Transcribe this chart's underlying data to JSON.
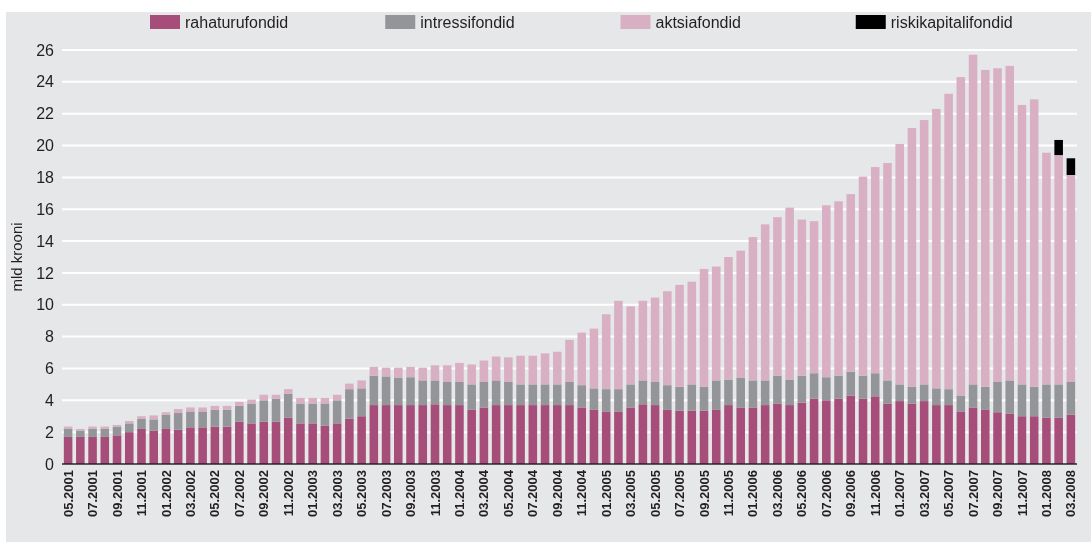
{
  "chart_data": {
    "type": "bar",
    "stacked": true,
    "ylabel": "mld krooni",
    "ylim": [
      0,
      26
    ],
    "yticks": [
      0,
      2,
      4,
      6,
      8,
      10,
      12,
      14,
      16,
      18,
      20,
      22,
      24,
      26
    ],
    "grid": "y",
    "legend": "top",
    "categories": [
      "05.2001",
      null,
      "07.2001",
      null,
      "09.2001",
      null,
      "11.2001",
      null,
      "01.2002",
      null,
      "03.2002",
      null,
      "05.2002",
      null,
      "07.2002",
      null,
      "09.2002",
      null,
      "11.2002",
      null,
      "01.2003",
      null,
      "03.2003",
      null,
      "05.2003",
      null,
      "07.2003",
      null,
      "09.2003",
      null,
      "11.2003",
      null,
      "01.2004",
      null,
      "03.2004",
      null,
      "05.2004",
      null,
      "07.2004",
      null,
      "09.2004",
      null,
      "11.2004",
      null,
      "01.2005",
      null,
      "03.2005",
      null,
      "05.2005",
      null,
      "07.2005",
      null,
      "09.2005",
      null,
      "11.2005",
      null,
      "01.2006",
      null,
      "03.2006",
      null,
      "05.2006",
      null,
      "07.2006",
      null,
      "09.2006",
      null,
      "11.2006",
      null,
      "01.2007",
      null,
      "03.2007",
      null,
      "05.2007",
      null,
      "07.2007",
      null,
      "09.2007",
      null,
      "11.2007",
      null,
      "01.2008",
      null,
      "03.2008"
    ],
    "series": [
      {
        "name": "rahaturufondid",
        "color": "#a64d79",
        "values": [
          1.7,
          1.7,
          1.7,
          1.7,
          1.8,
          2.0,
          2.2,
          2.1,
          2.2,
          2.15,
          2.3,
          2.3,
          2.35,
          2.35,
          2.65,
          2.55,
          2.65,
          2.65,
          2.9,
          2.55,
          2.55,
          2.4,
          2.55,
          2.85,
          3.0,
          3.7,
          3.7,
          3.7,
          3.7,
          3.7,
          3.75,
          3.7,
          3.7,
          3.4,
          3.55,
          3.7,
          3.7,
          3.7,
          3.7,
          3.7,
          3.7,
          3.7,
          3.55,
          3.4,
          3.3,
          3.3,
          3.55,
          3.75,
          3.7,
          3.4,
          3.35,
          3.35,
          3.35,
          3.4,
          3.7,
          3.55,
          3.55,
          3.7,
          3.8,
          3.7,
          3.85,
          4.1,
          4.0,
          4.1,
          4.3,
          4.1,
          4.25,
          3.8,
          3.95,
          3.8,
          3.95,
          3.7,
          3.7,
          3.3,
          3.55,
          3.4,
          3.25,
          3.15,
          3.0,
          3.0,
          2.9,
          2.9,
          3.1
        ]
      },
      {
        "name": "intressifondid",
        "color": "#939598",
        "values": [
          0.5,
          0.4,
          0.5,
          0.5,
          0.55,
          0.55,
          0.65,
          0.7,
          0.9,
          1.05,
          1.0,
          1.0,
          1.05,
          1.05,
          1.0,
          1.25,
          1.35,
          1.45,
          1.5,
          1.25,
          1.25,
          1.4,
          1.45,
          1.85,
          1.75,
          1.85,
          1.8,
          1.7,
          1.75,
          1.55,
          1.5,
          1.45,
          1.45,
          1.6,
          1.6,
          1.55,
          1.45,
          1.3,
          1.3,
          1.3,
          1.3,
          1.45,
          1.4,
          1.35,
          1.4,
          1.4,
          1.45,
          1.5,
          1.45,
          1.55,
          1.5,
          1.65,
          1.5,
          1.85,
          1.6,
          1.85,
          1.7,
          1.55,
          1.75,
          1.6,
          1.7,
          1.6,
          1.45,
          1.45,
          1.5,
          1.45,
          1.45,
          1.45,
          1.05,
          1.05,
          1.05,
          1.05,
          1.0,
          1.0,
          1.45,
          1.45,
          1.9,
          2.1,
          2.0,
          1.85,
          2.1,
          2.1,
          2.05
        ]
      },
      {
        "name": "aktsiafondid",
        "color": "#d9afc4",
        "values": [
          0.15,
          0.1,
          0.15,
          0.15,
          0.1,
          0.15,
          0.15,
          0.25,
          0.15,
          0.25,
          0.25,
          0.25,
          0.25,
          0.25,
          0.25,
          0.25,
          0.35,
          0.25,
          0.3,
          0.35,
          0.35,
          0.35,
          0.35,
          0.35,
          0.5,
          0.55,
          0.55,
          0.65,
          0.65,
          0.8,
          0.95,
          1.05,
          1.2,
          1.25,
          1.35,
          1.5,
          1.55,
          1.8,
          1.8,
          1.95,
          2.05,
          2.65,
          3.3,
          3.75,
          4.7,
          5.55,
          4.9,
          5.0,
          5.3,
          5.9,
          6.4,
          6.45,
          7.4,
          7.15,
          7.7,
          8.0,
          9.0,
          9.8,
          9.95,
          10.8,
          9.8,
          9.55,
          10.8,
          10.95,
          11.15,
          12.5,
          12.95,
          13.65,
          15.1,
          16.25,
          16.6,
          17.55,
          18.55,
          20.0,
          20.7,
          19.9,
          19.7,
          19.75,
          17.55,
          18.05,
          14.55,
          14.4,
          13.0
        ]
      },
      {
        "name": "riskikapitalifondid",
        "color": "#000000",
        "values": [
          null,
          null,
          null,
          null,
          null,
          null,
          null,
          null,
          null,
          null,
          null,
          null,
          null,
          null,
          null,
          null,
          null,
          null,
          null,
          null,
          null,
          null,
          null,
          null,
          null,
          null,
          null,
          null,
          null,
          null,
          null,
          null,
          null,
          null,
          null,
          null,
          null,
          null,
          null,
          null,
          null,
          null,
          null,
          null,
          null,
          null,
          null,
          null,
          null,
          null,
          null,
          null,
          null,
          null,
          null,
          null,
          null,
          null,
          null,
          null,
          null,
          null,
          null,
          null,
          null,
          null,
          null,
          null,
          null,
          null,
          null,
          null,
          null,
          null,
          null,
          null,
          null,
          null,
          null,
          null,
          null,
          0.95,
          1.05
        ]
      }
    ]
  }
}
